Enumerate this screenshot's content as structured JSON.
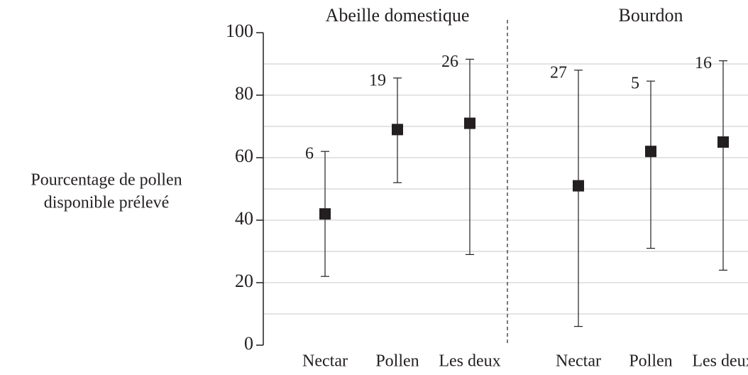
{
  "chart_data": {
    "type": "errorbar",
    "ylabel": [
      "Pourcentage de pollen",
      "disponible prélevé"
    ],
    "ylim": [
      0,
      100
    ],
    "yticks": [
      0,
      20,
      40,
      60,
      80,
      100
    ],
    "minor_yticks": [
      10,
      30,
      50,
      70,
      90
    ],
    "grid": true,
    "color": "#231f20",
    "groups": [
      {
        "name": "Abeille domestique",
        "categories": [
          "Nectar",
          "Pollen",
          "Les deux"
        ],
        "values": [
          42,
          69,
          71
        ],
        "lower": [
          22,
          52,
          29
        ],
        "upper": [
          62,
          85.5,
          91.5
        ],
        "counts": [
          6,
          19,
          26
        ]
      },
      {
        "name": "Bourdon",
        "categories": [
          "Nectar",
          "Pollen",
          "Les deux"
        ],
        "values": [
          51,
          62,
          65
        ],
        "lower": [
          6,
          31,
          24
        ],
        "upper": [
          88,
          84.5,
          91
        ],
        "counts": [
          27,
          5,
          16
        ]
      }
    ]
  }
}
